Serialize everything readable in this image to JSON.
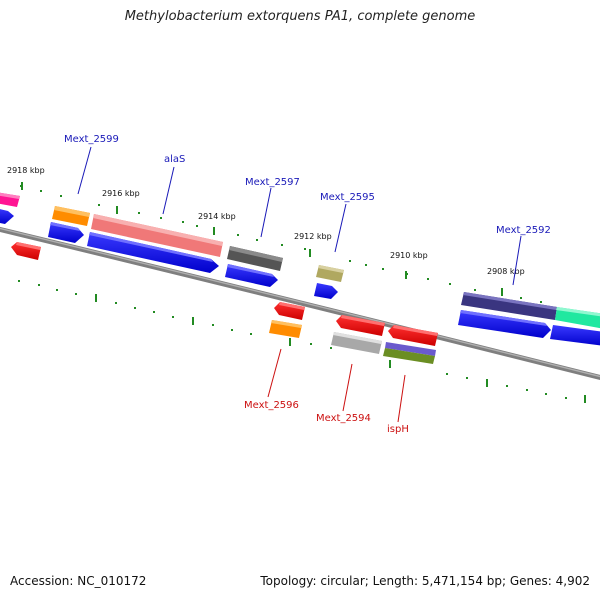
{
  "title": "Methylobacterium extorquens PA1, complete genome",
  "footer": {
    "accession": "Accession: NC_010172",
    "summary": "Topology: circular; Length: 5,471,154 bp; Genes: 4,902"
  },
  "ticks": [
    "2918 kbp",
    "2916 kbp",
    "2914 kbp",
    "2912 kbp",
    "2910 kbp",
    "2908 kbp"
  ],
  "gene_labels": {
    "mext_2599": "Mext_2599",
    "alas": "alaS",
    "mext_2597": "Mext_2597",
    "mext_2595": "Mext_2595",
    "mext_2592": "Mext_2592",
    "mext_2596": "Mext_2596",
    "mext_2594": "Mext_2594",
    "isph": "ispH"
  },
  "colors": {
    "forward_label": "#1a1ab8",
    "reverse_label": "#cc1111",
    "backbone": "#808080",
    "ticks": "#228b22"
  }
}
